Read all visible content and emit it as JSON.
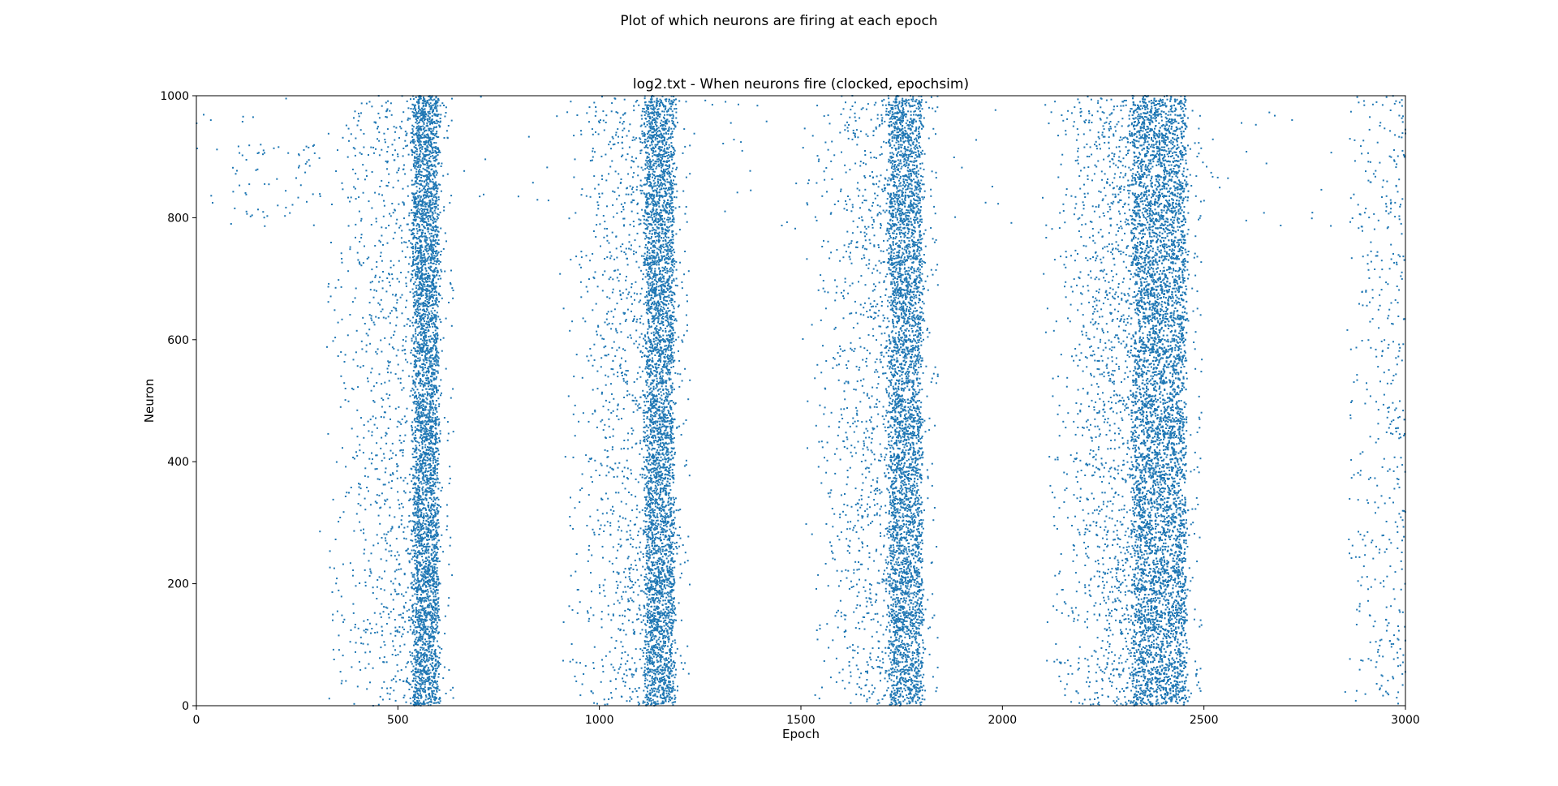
{
  "figure": {
    "suptitle": "Plot of which neurons are firing at each epoch"
  },
  "chart_data": {
    "type": "scatter",
    "title": "log2.txt - When neurons fire (clocked, epochsim)",
    "xlabel": "Epoch",
    "ylabel": "Neuron",
    "xlim": [
      0,
      3000
    ],
    "ylim": [
      0,
      1000
    ],
    "xticks": [
      0,
      500,
      1000,
      1500,
      2000,
      2500,
      3000
    ],
    "yticks": [
      0,
      200,
      400,
      600,
      800,
      1000
    ],
    "grid": false,
    "legend": "none",
    "marker_color": "#1f77b4",
    "series": [
      {
        "points_description_epochs": "dense firing bursts centred near epochs 570, 1150, 1760 and 2390 with sparse background firing",
        "bursts": [
          {
            "center_epoch": 570,
            "core_halfwidth": 30,
            "flank_start": 300,
            "density": "high"
          },
          {
            "center_epoch": 1150,
            "core_halfwidth": 35,
            "flank_start": 900,
            "density": "high"
          },
          {
            "center_epoch": 1760,
            "core_halfwidth": 40,
            "flank_start": 1500,
            "density": "high"
          },
          {
            "center_epoch": 2390,
            "core_halfwidth": 65,
            "flank_start": 2100,
            "density": "very high"
          }
        ]
      }
    ]
  }
}
